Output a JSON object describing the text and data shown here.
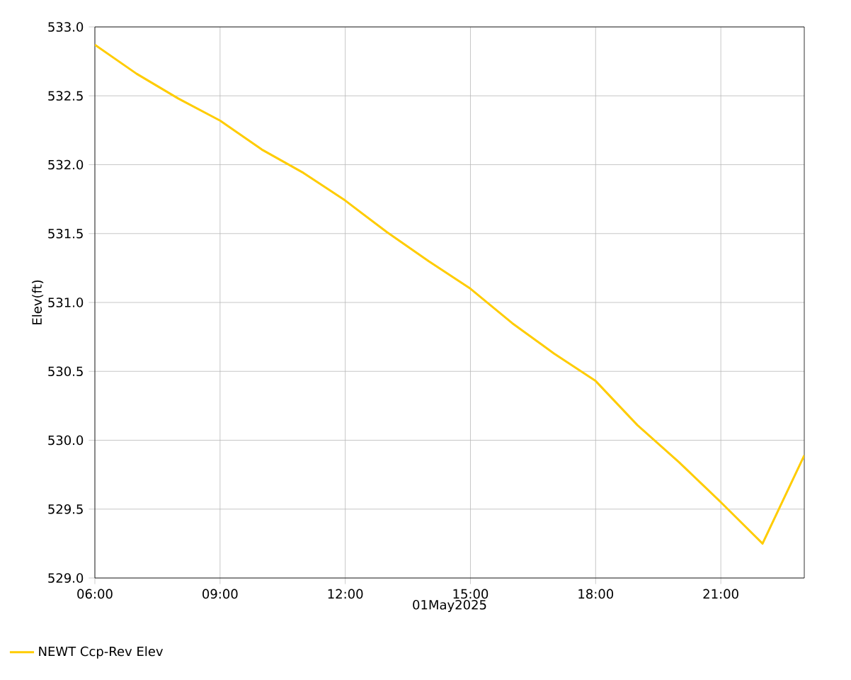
{
  "chart_data": {
    "type": "line",
    "xlabel": "01May2025",
    "ylabel": "Elev(ft)",
    "x": [
      6,
      7,
      8,
      9,
      10,
      11,
      12,
      13,
      14,
      15,
      16,
      17,
      18,
      19,
      20,
      21,
      22,
      23
    ],
    "series": [
      {
        "name": "NEWT Ccp-Rev Elev",
        "color": "#ffcc00",
        "values": [
          532.87,
          532.66,
          532.48,
          532.32,
          532.11,
          531.94,
          531.74,
          531.51,
          531.3,
          531.1,
          530.85,
          530.63,
          530.43,
          530.11,
          529.84,
          529.55,
          529.25,
          529.89
        ]
      }
    ],
    "xlim": [
      6,
      23
    ],
    "xticks": [
      {
        "value": 6,
        "label": "06:00"
      },
      {
        "value": 9,
        "label": "09:00"
      },
      {
        "value": 12,
        "label": "12:00"
      },
      {
        "value": 15,
        "label": "15:00"
      },
      {
        "value": 18,
        "label": "18:00"
      },
      {
        "value": 21,
        "label": "21:00"
      }
    ],
    "ylim": [
      529,
      533
    ],
    "yticks": [
      {
        "value": 529,
        "label": "529.0"
      },
      {
        "value": 529.5,
        "label": "529.5"
      },
      {
        "value": 530,
        "label": "530.0"
      },
      {
        "value": 530.5,
        "label": "530.5"
      },
      {
        "value": 531,
        "label": "531.0"
      },
      {
        "value": 531.5,
        "label": "531.5"
      },
      {
        "value": 532,
        "label": "532.0"
      },
      {
        "value": 532.5,
        "label": "532.5"
      },
      {
        "value": 533,
        "label": "533.0"
      }
    ],
    "grid": true,
    "legend": "bottom left"
  }
}
